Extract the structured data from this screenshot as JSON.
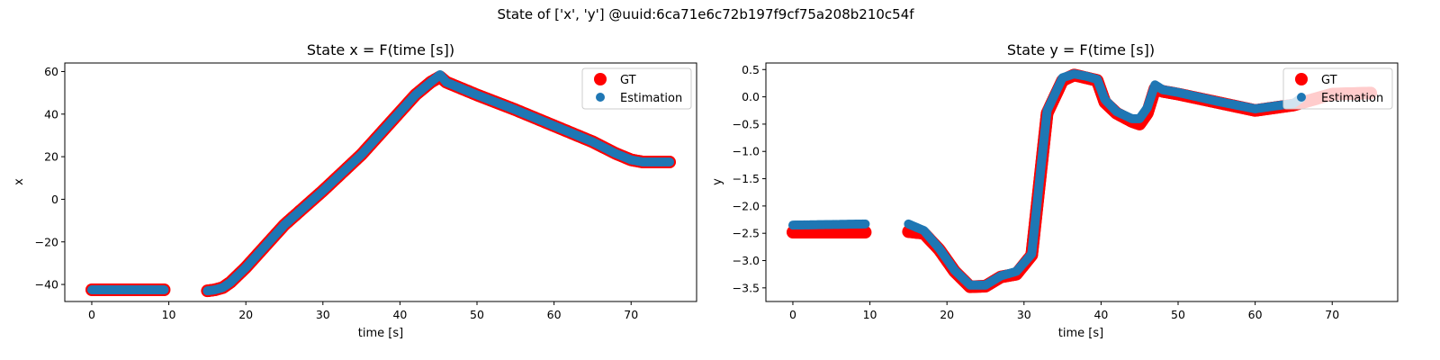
{
  "figure": {
    "suptitle": "State of ['x', 'y'] @uuid:6ca71e6c72b197f9cf75a208b210c54f"
  },
  "colors": {
    "gt": "#ff0000",
    "estimation": "#1f77b4"
  },
  "chart_data": [
    {
      "type": "scatter",
      "title": "State x = F(time [s])",
      "xlabel": "time [s]",
      "ylabel": "x",
      "xlim": [
        -3.5,
        78.5
      ],
      "ylim": [
        -48,
        64
      ],
      "xticks": [
        0,
        10,
        20,
        30,
        40,
        50,
        60,
        70
      ],
      "yticks": [
        -40,
        -20,
        0,
        20,
        40,
        60
      ],
      "grid": false,
      "legend_position": "upper right",
      "series": [
        {
          "name": "GT",
          "segments": [
            [
              [
                0,
                -42.5
              ],
              [
                9.4,
                -42.5
              ]
            ],
            [
              [
                15,
                -43
              ],
              [
                16,
                -42.5
              ],
              [
                17,
                -41.5
              ],
              [
                18,
                -39
              ],
              [
                20,
                -32
              ],
              [
                25,
                -12
              ],
              [
                30,
                4
              ],
              [
                35,
                21
              ],
              [
                40,
                41
              ],
              [
                42,
                49
              ],
              [
                44,
                55
              ],
              [
                45.2,
                57.5
              ],
              [
                46,
                55
              ],
              [
                50,
                49
              ],
              [
                55,
                42
              ],
              [
                60,
                34.5
              ],
              [
                65,
                27
              ],
              [
                68,
                21.5
              ],
              [
                70,
                18.5
              ],
              [
                71.5,
                17.5
              ],
              [
                75,
                17.5
              ]
            ]
          ]
        },
        {
          "name": "Estimation",
          "segments": [
            [
              [
                0,
                -42.5
              ],
              [
                9.4,
                -42.5
              ]
            ],
            [
              [
                15,
                -43
              ],
              [
                16,
                -42.5
              ],
              [
                17,
                -41.5
              ],
              [
                18,
                -39
              ],
              [
                20,
                -32
              ],
              [
                25,
                -12
              ],
              [
                30,
                4
              ],
              [
                35,
                21
              ],
              [
                40,
                41
              ],
              [
                42,
                49
              ],
              [
                44,
                55
              ],
              [
                45.2,
                58.5
              ],
              [
                46,
                55
              ],
              [
                50,
                49
              ],
              [
                55,
                42
              ],
              [
                60,
                34.5
              ],
              [
                65,
                27
              ],
              [
                68,
                21.5
              ],
              [
                70,
                18.5
              ],
              [
                71.5,
                17.5
              ],
              [
                75,
                17.5
              ]
            ]
          ]
        }
      ]
    },
    {
      "type": "scatter",
      "title": "State y = F(time [s])",
      "xlabel": "time [s]",
      "ylabel": "y",
      "xlim": [
        -3.5,
        78.5
      ],
      "ylim": [
        -3.75,
        0.62
      ],
      "xticks": [
        0,
        10,
        20,
        30,
        40,
        50,
        60,
        70
      ],
      "yticks": [
        -3.5,
        -3.0,
        -2.5,
        -2.0,
        -1.5,
        -1.0,
        -0.5,
        0.0,
        0.5
      ],
      "grid": false,
      "legend_position": "upper right",
      "series": [
        {
          "name": "GT",
          "segments": [
            [
              [
                0,
                -2.48
              ],
              [
                9.4,
                -2.48
              ]
            ],
            [
              [
                15,
                -2.47
              ],
              [
                17,
                -2.5
              ],
              [
                19,
                -2.8
              ],
              [
                21,
                -3.2
              ],
              [
                23,
                -3.48
              ],
              [
                25,
                -3.47
              ],
              [
                27,
                -3.3
              ],
              [
                29,
                -3.25
              ],
              [
                31,
                -2.9
              ],
              [
                32,
                -1.6
              ],
              [
                33,
                -0.3
              ],
              [
                35,
                0.3
              ],
              [
                36.5,
                0.4
              ],
              [
                38,
                0.35
              ],
              [
                39.5,
                0.3
              ],
              [
                40.5,
                -0.1
              ],
              [
                42,
                -0.3
              ],
              [
                44,
                -0.45
              ],
              [
                45,
                -0.5
              ],
              [
                46,
                -0.3
              ],
              [
                47,
                0.15
              ],
              [
                48,
                0.1
              ],
              [
                50,
                0.05
              ],
              [
                55,
                -0.1
              ],
              [
                60,
                -0.25
              ],
              [
                65,
                -0.15
              ],
              [
                70,
                0.05
              ],
              [
                75,
                0.07
              ]
            ]
          ]
        },
        {
          "name": "Estimation",
          "segments": [
            [
              [
                0,
                -2.35
              ],
              [
                9.4,
                -2.33
              ]
            ],
            [
              [
                15,
                -2.33
              ],
              [
                17,
                -2.45
              ],
              [
                19,
                -2.78
              ],
              [
                21,
                -3.18
              ],
              [
                23,
                -3.45
              ],
              [
                25,
                -3.45
              ],
              [
                27,
                -3.28
              ],
              [
                29,
                -3.2
              ],
              [
                31,
                -2.88
              ],
              [
                32,
                -1.55
              ],
              [
                33,
                -0.25
              ],
              [
                35,
                0.35
              ],
              [
                36.5,
                0.42
              ],
              [
                38,
                0.38
              ],
              [
                39.5,
                0.32
              ],
              [
                40.5,
                -0.05
              ],
              [
                42,
                -0.27
              ],
              [
                44,
                -0.4
              ],
              [
                45,
                -0.4
              ],
              [
                46,
                -0.2
              ],
              [
                47,
                0.22
              ],
              [
                48,
                0.13
              ],
              [
                50,
                0.08
              ],
              [
                55,
                -0.08
              ],
              [
                60,
                -0.22
              ],
              [
                65,
                -0.12
              ],
              [
                66,
                -0.02
              ]
            ]
          ]
        }
      ]
    }
  ]
}
